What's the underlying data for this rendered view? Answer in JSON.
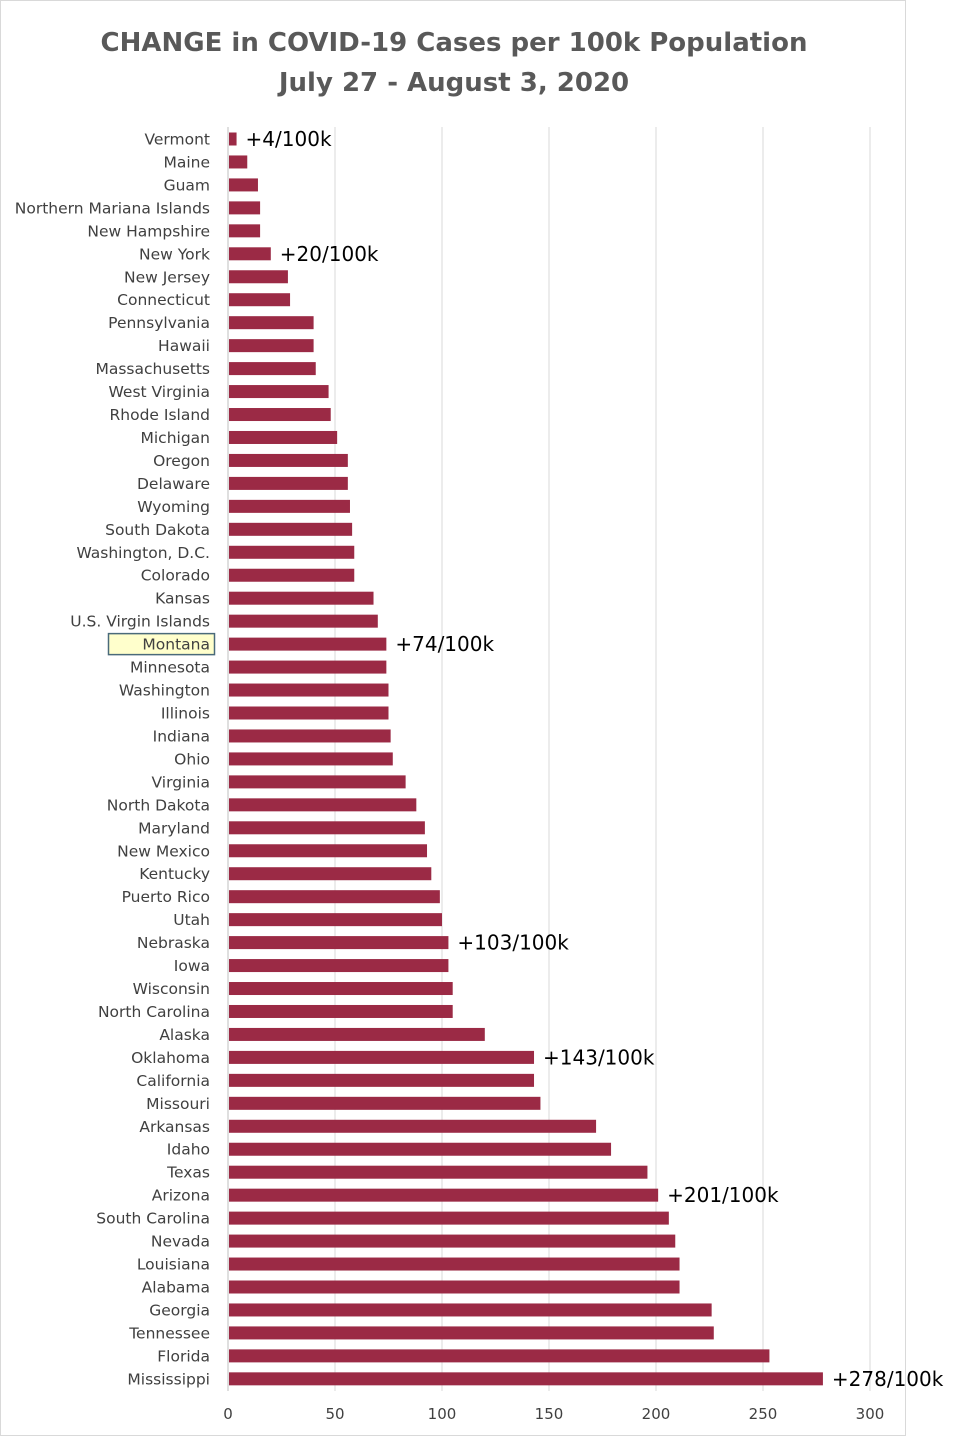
{
  "chart_data": {
    "type": "bar",
    "orientation": "horizontal",
    "title": "CHANGE in COVID-19 Cases per 100k Population",
    "subtitle": "July 27 - August 3, 2020",
    "xlabel": "",
    "ylabel": "",
    "xlim": [
      0,
      300
    ],
    "x_ticks": [
      0,
      50,
      100,
      150,
      200,
      250,
      300
    ],
    "grid": "vertical",
    "legend": "none",
    "bar_color": "#9b2a45",
    "highlight_category": "Montana",
    "highlight_fill": "#ffffcc",
    "highlight_border": "#4a6a7a",
    "categories": [
      "Vermont",
      "Maine",
      "Guam",
      "Northern Mariana Islands",
      "New Hampshire",
      "New York",
      "New Jersey",
      "Connecticut",
      "Pennsylvania",
      "Hawaii",
      "Massachusetts",
      "West Virginia",
      "Rhode Island",
      "Michigan",
      "Oregon",
      "Delaware",
      "Wyoming",
      "South Dakota",
      "Washington, D.C.",
      "Colorado",
      "Kansas",
      "U.S. Virgin Islands",
      "Montana",
      "Minnesota",
      "Washington",
      "Illinois",
      "Indiana",
      "Ohio",
      "Virginia",
      "North Dakota",
      "Maryland",
      "New Mexico",
      "Kentucky",
      "Puerto Rico",
      "Utah",
      "Nebraska",
      "Iowa",
      "Wisconsin",
      "North Carolina",
      "Alaska",
      "Oklahoma",
      "California",
      "Missouri",
      "Arkansas",
      "Idaho",
      "Texas",
      "Arizona",
      "South Carolina",
      "Nevada",
      "Louisiana",
      "Alabama",
      "Georgia",
      "Tennessee",
      "Florida",
      "Mississippi"
    ],
    "values": [
      4,
      9,
      14,
      15,
      15,
      20,
      28,
      29,
      40,
      40,
      41,
      47,
      48,
      51,
      56,
      56,
      57,
      58,
      59,
      59,
      68,
      70,
      74,
      74,
      75,
      75,
      76,
      77,
      83,
      88,
      92,
      93,
      95,
      99,
      100,
      103,
      103,
      105,
      105,
      120,
      143,
      143,
      146,
      172,
      179,
      196,
      201,
      206,
      209,
      211,
      211,
      226,
      227,
      253,
      278
    ],
    "annotations": [
      {
        "category": "Vermont",
        "text": "+4/100k"
      },
      {
        "category": "New York",
        "text": "+20/100k"
      },
      {
        "category": "Montana",
        "text": "+74/100k"
      },
      {
        "category": "Nebraska",
        "text": "+103/100k"
      },
      {
        "category": "Oklahoma",
        "text": "+143/100k"
      },
      {
        "category": "Arizona",
        "text": "+201/100k"
      },
      {
        "category": "Mississippi",
        "text": "+278/100k"
      }
    ]
  }
}
